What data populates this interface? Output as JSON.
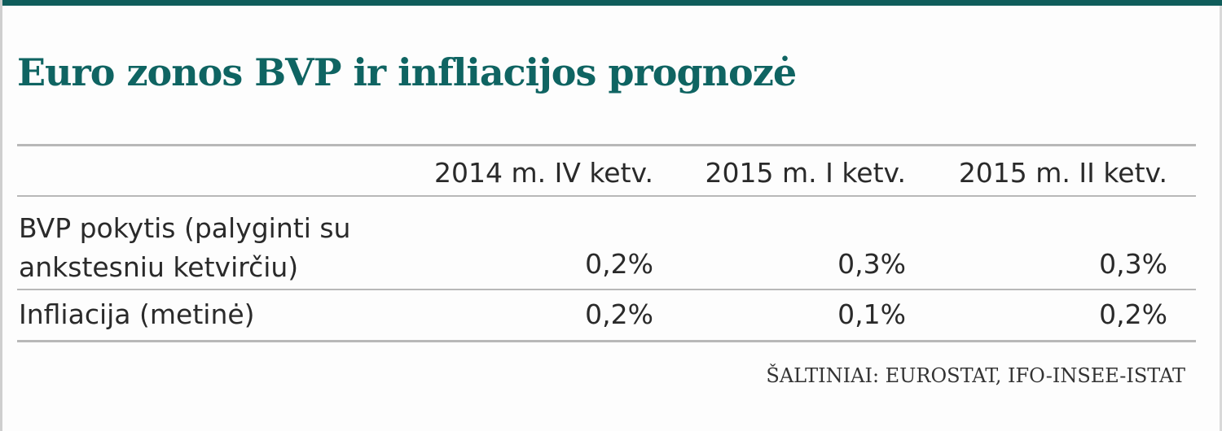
{
  "chart_data": {
    "type": "table",
    "title": "Euro zonos BVP ir infliacijos prognozė",
    "columns": [
      "2014 m. IV ketv.",
      "2015 m. I ketv.",
      "2015 m. II ketv."
    ],
    "rows": [
      {
        "label": "BVP pokytis (palyginti su\nankstesniu ketvirčiu)",
        "values": [
          "0,2%",
          "0,3%",
          "0,3%"
        ]
      },
      {
        "label": "Infliacija (metinė)",
        "values": [
          "0,2%",
          "0,1%",
          "0,2%"
        ]
      }
    ],
    "source": "ŠALTINIAI: EUROSTAT, IFO-INSEE-ISTAT"
  },
  "colors": {
    "accent": "#0f6462",
    "rule": "#b8b8b8",
    "text": "#2a2a2a"
  }
}
